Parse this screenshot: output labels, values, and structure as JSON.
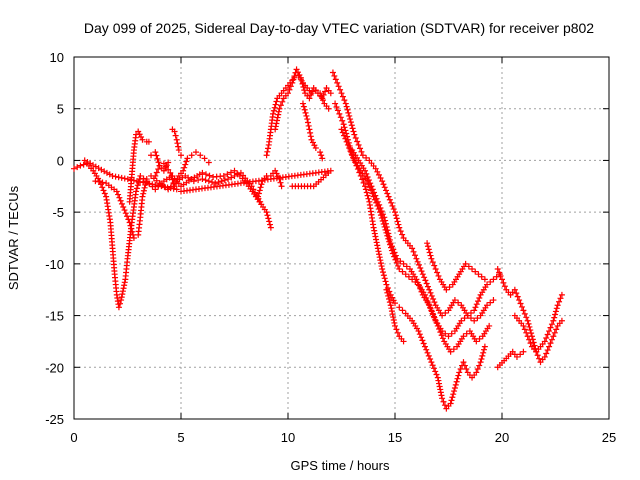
{
  "chart_data": {
    "type": "scatter",
    "title": "Day 099 of 2025, Sidereal Day-to-day VTEC variation (SDTVAR) for receiver p802",
    "xlabel": "GPS time / hours",
    "ylabel": "SDTVAR / TECUs",
    "xlim": [
      0,
      25
    ],
    "ylim": [
      -25,
      10
    ],
    "xticks": [
      "0",
      "5",
      "10",
      "15",
      "20",
      "25"
    ],
    "yticks": [
      "10",
      "5",
      "0",
      "-5",
      "-10",
      "-15",
      "-20",
      "-25"
    ],
    "grid": true,
    "marker": "+",
    "color": "#ff0000",
    "series": [
      {
        "values": [
          [
            0,
            -0.8
          ],
          [
            0.3,
            -0.5
          ],
          [
            0.6,
            -0.3
          ],
          [
            0.9,
            -1.0
          ],
          [
            1.2,
            -2.0
          ],
          [
            1.5,
            -3.5
          ],
          [
            1.7,
            -6.0
          ],
          [
            1.8,
            -8.5
          ],
          [
            1.9,
            -11.0
          ],
          [
            2.0,
            -13.0
          ],
          [
            2.1,
            -14.2
          ],
          [
            2.2,
            -13.5
          ],
          [
            2.4,
            -11.5
          ],
          [
            2.5,
            -9.5
          ],
          [
            2.7,
            -6.0
          ],
          [
            2.9,
            -3.0
          ],
          [
            3.1,
            -1.5
          ],
          [
            3.4,
            -2.0
          ],
          [
            3.8,
            -2.8
          ],
          [
            4.2,
            -2.0
          ],
          [
            4.6,
            -1.5
          ],
          [
            5.0,
            -2.5
          ],
          [
            5.5,
            -1.8
          ],
          [
            6.0,
            -1.2
          ],
          [
            6.5,
            -1.6
          ],
          [
            7.0,
            -1.5
          ],
          [
            7.5,
            -1.0
          ],
          [
            8.0,
            -2.0
          ],
          [
            8.5,
            -3.5
          ],
          [
            9.0,
            -5.0
          ],
          [
            9.2,
            -6.5
          ]
        ]
      },
      {
        "values": [
          [
            1.0,
            -2.0
          ],
          [
            1.5,
            -2.2
          ],
          [
            2.0,
            -3.0
          ],
          [
            2.3,
            -4.5
          ],
          [
            2.6,
            -6.0
          ],
          [
            2.8,
            -7.5
          ],
          [
            3.0,
            -7.2
          ],
          [
            3.1,
            -5.5
          ],
          [
            3.2,
            -3.5
          ],
          [
            3.4,
            -1.8
          ],
          [
            3.6,
            -1.5
          ],
          [
            4.0,
            -2.2
          ],
          [
            4.4,
            -2.8
          ],
          [
            4.8,
            -2.0
          ],
          [
            5.2,
            -1.5
          ],
          [
            5.6,
            -2.0
          ],
          [
            6.0,
            -1.8
          ],
          [
            6.6,
            -2.2
          ],
          [
            7.2,
            -1.8
          ],
          [
            7.8,
            -1.2
          ],
          [
            8.3,
            -2.5
          ],
          [
            8.7,
            -4.0
          ]
        ]
      },
      {
        "values": [
          [
            2.6,
            -4.0
          ],
          [
            2.8,
            1.0
          ],
          [
            2.9,
            2.5
          ],
          [
            3.0,
            2.8
          ],
          [
            3.2,
            2.0
          ],
          [
            3.4,
            1.8
          ],
          [
            3.5,
            1.8
          ]
        ]
      },
      {
        "values": [
          [
            3.8,
            -1.5
          ],
          [
            4.0,
            -0.5
          ],
          [
            4.2,
            -0.3
          ],
          [
            4.5,
            -1.2
          ],
          [
            4.7,
            -2.5
          ],
          [
            4.9,
            -1.5
          ],
          [
            5.1,
            -1.0
          ],
          [
            5.3,
            0.2
          ],
          [
            5.5,
            0.5
          ],
          [
            5.7,
            0.8
          ],
          [
            5.9,
            0.5
          ],
          [
            6.1,
            0.2
          ],
          [
            6.3,
            -0.2
          ]
        ]
      },
      {
        "values": [
          [
            4.6,
            3.0
          ],
          [
            4.7,
            2.8
          ],
          [
            4.8,
            2.0
          ],
          [
            4.9,
            1.0
          ],
          [
            5.0,
            0.5
          ]
        ]
      },
      {
        "values": [
          [
            3.6,
            0.5
          ],
          [
            3.8,
            0.8
          ],
          [
            4.0,
            -0.5
          ],
          [
            4.2,
            -1.0
          ],
          [
            4.4,
            -0.2
          ]
        ]
      },
      {
        "values": [
          [
            9.0,
            0.5
          ],
          [
            9.1,
            1.5
          ],
          [
            9.2,
            3.0
          ],
          [
            9.3,
            4.5
          ],
          [
            9.5,
            6.0
          ],
          [
            9.7,
            6.5
          ],
          [
            9.9,
            7.0
          ],
          [
            10.1,
            7.5
          ],
          [
            10.3,
            8.0
          ],
          [
            10.5,
            8.2
          ],
          [
            10.7,
            7.5
          ],
          [
            10.9,
            7.0
          ],
          [
            11.1,
            6.5
          ],
          [
            11.3,
            6.8
          ],
          [
            11.5,
            6.5
          ],
          [
            11.7,
            5.5
          ],
          [
            11.9,
            5.0
          ]
        ]
      },
      {
        "values": [
          [
            9.4,
            3.0
          ],
          [
            9.6,
            5.0
          ],
          [
            9.8,
            6.0
          ],
          [
            10.0,
            6.5
          ],
          [
            10.2,
            7.5
          ],
          [
            10.4,
            8.8
          ],
          [
            10.6,
            8.0
          ],
          [
            10.8,
            6.5
          ],
          [
            11.0,
            6.0
          ],
          [
            11.2,
            7.0
          ],
          [
            11.4,
            6.5
          ],
          [
            11.6,
            6.0
          ],
          [
            11.8,
            7.0
          ],
          [
            12.0,
            6.5
          ]
        ]
      },
      {
        "values": [
          [
            8.6,
            -3.5
          ],
          [
            8.8,
            -2.0
          ],
          [
            9.0,
            -1.5
          ],
          [
            9.2,
            -1.5
          ],
          [
            9.4,
            -1.0
          ],
          [
            9.6,
            -1.8
          ],
          [
            9.7,
            -2.5
          ]
        ]
      },
      {
        "values": [
          [
            10.7,
            5.5
          ],
          [
            10.9,
            4.0
          ],
          [
            11.0,
            3.0
          ],
          [
            11.1,
            2.0
          ],
          [
            11.3,
            1.2
          ],
          [
            11.5,
            0.8
          ],
          [
            11.6,
            0.2
          ]
        ]
      },
      {
        "values": [
          [
            12.1,
            8.5
          ],
          [
            12.3,
            7.5
          ],
          [
            12.5,
            6.5
          ],
          [
            12.7,
            5.5
          ],
          [
            12.9,
            4.0
          ],
          [
            13.1,
            2.5
          ],
          [
            13.3,
            1.5
          ],
          [
            13.5,
            0.5
          ],
          [
            13.8,
            0.0
          ],
          [
            14.1,
            -0.8
          ],
          [
            14.4,
            -2.0
          ],
          [
            14.7,
            -3.5
          ],
          [
            15.0,
            -5.0
          ],
          [
            15.2,
            -6.5
          ],
          [
            15.4,
            -7.5
          ],
          [
            15.6,
            -8.0
          ],
          [
            15.8,
            -8.5
          ],
          [
            16.0,
            -9.5
          ],
          [
            16.3,
            -11.0
          ],
          [
            16.6,
            -12.5
          ],
          [
            16.9,
            -14.0
          ],
          [
            17.2,
            -15.0
          ],
          [
            17.5,
            -14.5
          ],
          [
            17.8,
            -13.5
          ],
          [
            18.1,
            -14.0
          ],
          [
            18.4,
            -15.0
          ],
          [
            18.7,
            -14.5
          ],
          [
            19.0,
            -13.0
          ],
          [
            19.3,
            -12.0
          ],
          [
            19.6,
            -11.5
          ],
          [
            19.9,
            -11.0
          ]
        ]
      },
      {
        "values": [
          [
            12.2,
            5.5
          ],
          [
            12.4,
            4.5
          ],
          [
            12.6,
            3.5
          ],
          [
            12.8,
            2.0
          ],
          [
            13.0,
            0.5
          ],
          [
            13.2,
            -0.5
          ],
          [
            13.4,
            -1.5
          ],
          [
            13.6,
            -2.5
          ],
          [
            13.8,
            -4.0
          ],
          [
            14.0,
            -6.5
          ],
          [
            14.2,
            -8.5
          ],
          [
            14.4,
            -10.5
          ],
          [
            14.6,
            -12.0
          ],
          [
            14.8,
            -13.0
          ],
          [
            15.0,
            -13.8
          ],
          [
            15.2,
            -14.2
          ],
          [
            15.5,
            -14.8
          ],
          [
            15.8,
            -15.5
          ],
          [
            16.1,
            -16.5
          ],
          [
            16.4,
            -18.0
          ],
          [
            16.7,
            -19.5
          ],
          [
            17.0,
            -21.0
          ],
          [
            17.2,
            -23.0
          ],
          [
            17.4,
            -24.0
          ],
          [
            17.6,
            -23.5
          ],
          [
            17.8,
            -22.0
          ],
          [
            18.0,
            -20.5
          ],
          [
            18.2,
            -19.5
          ],
          [
            18.4,
            -20.5
          ],
          [
            18.6,
            -21.0
          ],
          [
            18.8,
            -20.5
          ],
          [
            19.0,
            -19.5
          ],
          [
            19.2,
            -18.0
          ]
        ]
      },
      {
        "values": [
          [
            12.5,
            3.0
          ],
          [
            12.8,
            1.5
          ],
          [
            13.1,
            0.0
          ],
          [
            13.4,
            -1.0
          ],
          [
            13.7,
            -2.0
          ],
          [
            14.0,
            -3.5
          ],
          [
            14.3,
            -5.0
          ],
          [
            14.6,
            -7.0
          ],
          [
            14.9,
            -9.0
          ],
          [
            15.2,
            -10.5
          ],
          [
            15.5,
            -11.0
          ],
          [
            15.8,
            -11.5
          ],
          [
            16.1,
            -12.0
          ],
          [
            16.4,
            -13.0
          ],
          [
            16.7,
            -14.5
          ],
          [
            17.0,
            -16.0
          ],
          [
            17.3,
            -17.5
          ],
          [
            17.6,
            -18.5
          ],
          [
            17.9,
            -18.0
          ],
          [
            18.2,
            -17.0
          ],
          [
            18.5,
            -16.5
          ],
          [
            18.8,
            -17.5
          ],
          [
            19.1,
            -17.0
          ],
          [
            19.4,
            -16.0
          ]
        ]
      },
      {
        "values": [
          [
            13.0,
            1.0
          ],
          [
            13.3,
            0.0
          ],
          [
            13.6,
            -1.0
          ],
          [
            13.9,
            -2.5
          ],
          [
            14.2,
            -4.0
          ],
          [
            14.5,
            -5.5
          ],
          [
            14.8,
            -8.0
          ],
          [
            15.1,
            -9.5
          ],
          [
            15.4,
            -10.0
          ],
          [
            15.7,
            -10.5
          ],
          [
            16.0,
            -11.5
          ],
          [
            16.3,
            -13.0
          ],
          [
            16.6,
            -14.0
          ],
          [
            16.9,
            -15.5
          ],
          [
            17.2,
            -16.5
          ],
          [
            17.5,
            -17.0
          ],
          [
            17.8,
            -16.5
          ],
          [
            18.1,
            -15.5
          ],
          [
            18.4,
            -15.0
          ],
          [
            18.7,
            -15.5
          ],
          [
            19.0,
            -15.0
          ],
          [
            19.3,
            -14.0
          ],
          [
            19.6,
            -13.5
          ]
        ]
      },
      {
        "values": [
          [
            14.6,
            -12.5
          ],
          [
            14.8,
            -14.0
          ],
          [
            15.0,
            -16.0
          ],
          [
            15.2,
            -17.0
          ],
          [
            15.4,
            -17.5
          ]
        ]
      },
      {
        "values": [
          [
            16.5,
            -8.0
          ],
          [
            16.7,
            -9.5
          ],
          [
            16.9,
            -10.5
          ],
          [
            17.1,
            -11.5
          ],
          [
            17.4,
            -12.5
          ],
          [
            17.7,
            -12.0
          ],
          [
            18.0,
            -11.0
          ],
          [
            18.3,
            -10.0
          ],
          [
            18.6,
            -10.5
          ],
          [
            18.9,
            -11.0
          ],
          [
            19.2,
            -11.5
          ]
        ]
      },
      {
        "values": [
          [
            19.8,
            -10.5
          ],
          [
            20.0,
            -11.5
          ],
          [
            20.2,
            -12.5
          ],
          [
            20.4,
            -13.0
          ],
          [
            20.6,
            -12.5
          ],
          [
            20.8,
            -13.5
          ],
          [
            21.0,
            -14.5
          ],
          [
            21.2,
            -15.5
          ],
          [
            21.4,
            -17.0
          ],
          [
            21.6,
            -18.5
          ],
          [
            21.8,
            -19.5
          ],
          [
            22.0,
            -19.0
          ],
          [
            22.2,
            -18.0
          ],
          [
            22.4,
            -17.0
          ],
          [
            22.6,
            -16.0
          ],
          [
            22.8,
            -15.5
          ]
        ]
      },
      {
        "values": [
          [
            20.6,
            -15.0
          ],
          [
            20.8,
            -15.5
          ],
          [
            21.0,
            -16.0
          ],
          [
            21.2,
            -17.0
          ],
          [
            21.4,
            -18.0
          ],
          [
            21.6,
            -18.5
          ],
          [
            21.8,
            -18.0
          ],
          [
            22.0,
            -17.5
          ],
          [
            22.2,
            -16.5
          ],
          [
            22.4,
            -15.5
          ],
          [
            22.6,
            -14.0
          ],
          [
            22.8,
            -13.0
          ]
        ]
      },
      {
        "values": [
          [
            19.8,
            -20.0
          ],
          [
            20.5,
            -18.5
          ],
          [
            20.7,
            -19.0
          ],
          [
            21.0,
            -18.5
          ]
        ]
      },
      {
        "values": [
          [
            10.2,
            -2.5
          ],
          [
            11.2,
            -2.5
          ],
          [
            12.0,
            -1.0
          ],
          [
            5.0,
            -3.0
          ],
          [
            4.8,
            -2.8
          ],
          [
            1.8,
            -1.5
          ],
          [
            0.5,
            0.0
          ]
        ]
      }
    ]
  }
}
